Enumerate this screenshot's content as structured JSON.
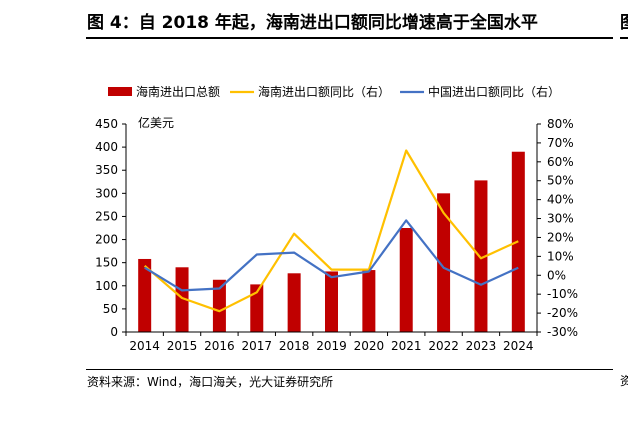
{
  "title": "图 4：自 2018 年起，海南进出口额同比增速高于全国水平",
  "source": "资料来源：Wind，海口海关，光大证券研究所",
  "edge_glyph_top": "图",
  "edge_glyph_bottom": "资",
  "chart_data": {
    "type": "bar+line",
    "categories": [
      "2014",
      "2015",
      "2016",
      "2017",
      "2018",
      "2019",
      "2020",
      "2021",
      "2022",
      "2023",
      "2024"
    ],
    "y_left": {
      "label": "亿美元",
      "range": [
        0,
        450
      ],
      "ticks": [
        0,
        50,
        100,
        150,
        200,
        250,
        300,
        350,
        400,
        450
      ]
    },
    "y_right": {
      "range": [
        -30,
        80
      ],
      "ticks": [
        "-30%",
        "-20%",
        "-10%",
        "0%",
        "10%",
        "20%",
        "30%",
        "40%",
        "50%",
        "60%",
        "70%",
        "80%"
      ],
      "tick_values": [
        -30,
        -20,
        -10,
        0,
        10,
        20,
        30,
        40,
        50,
        60,
        70,
        80
      ]
    },
    "series": [
      {
        "name": "海南进出口总额",
        "type": "bar",
        "axis": "left",
        "color": "#c00000",
        "values": [
          158,
          140,
          113,
          103,
          127,
          131,
          134,
          225,
          300,
          328,
          390
        ]
      },
      {
        "name": "海南进出口额同比（右）",
        "type": "line",
        "axis": "right",
        "color": "#ffc000",
        "values": [
          5,
          -12,
          -19,
          -9,
          22,
          3,
          3,
          66,
          33,
          9,
          18
        ]
      },
      {
        "name": "中国进出口额同比（右）",
        "type": "line",
        "axis": "right",
        "color": "#4472c4",
        "values": [
          4,
          -8,
          -7,
          11,
          12,
          -1,
          2,
          29,
          4,
          -5,
          4
        ]
      }
    ]
  }
}
